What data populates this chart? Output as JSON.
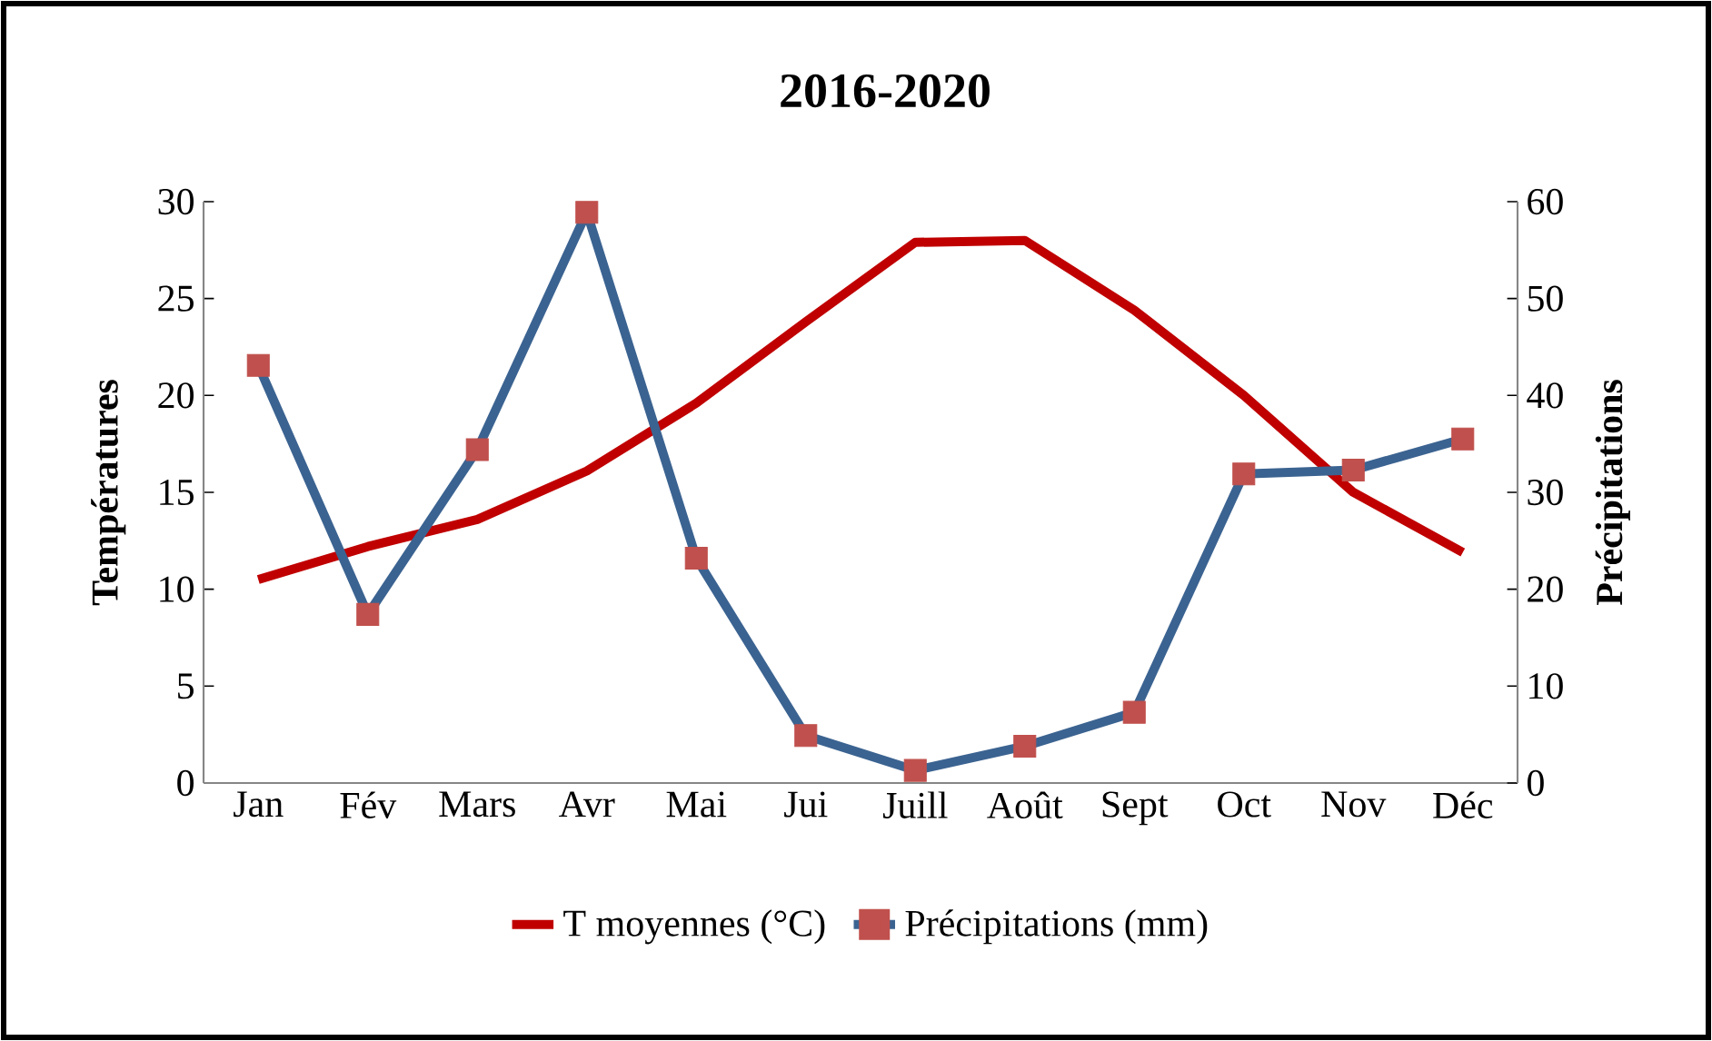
{
  "chart_data": {
    "type": "line",
    "title": "2016-2020",
    "ylabel": "Températures",
    "y2label": "Précipitations",
    "categories": [
      "Jan",
      "Fév",
      "Mars",
      "Avr",
      "Mai",
      "Jui",
      "Juill",
      "Août",
      "Sept",
      "Oct",
      "Nov",
      "Déc"
    ],
    "series": [
      {
        "name": "T moyennes (°C)",
        "color": "#c00000",
        "axis": "y",
        "marker": "none",
        "values": [
          10.5,
          12.2,
          13.6,
          16.1,
          19.6,
          23.8,
          27.9,
          28.0,
          24.4,
          20.0,
          15.0,
          11.9
        ]
      },
      {
        "name": "Précipitations (mm)",
        "color": "#3b6391",
        "axis": "y2",
        "marker": "square",
        "colors": [
          "#c0504d",
          "#c0504d",
          "#c0504d",
          "#c0504d",
          "#c0504d",
          "#c0504d",
          "#c0504d",
          "#c0504d",
          "#c0504d",
          "#c0504d",
          "#c0504d",
          "#c0504d"
        ],
        "values": [
          43.1,
          17.4,
          34.4,
          58.9,
          23.2,
          4.9,
          1.3,
          3.8,
          7.3,
          31.9,
          32.3,
          35.5
        ]
      }
    ],
    "ylim": [
      0,
      30
    ],
    "yticks": [
      0,
      5,
      10,
      15,
      20,
      25,
      30
    ],
    "y2lim": [
      0,
      60
    ],
    "y2ticks": [
      0,
      10,
      20,
      30,
      40,
      50,
      60
    ],
    "grid": false,
    "legend": "bottom",
    "line_style": "solid"
  }
}
